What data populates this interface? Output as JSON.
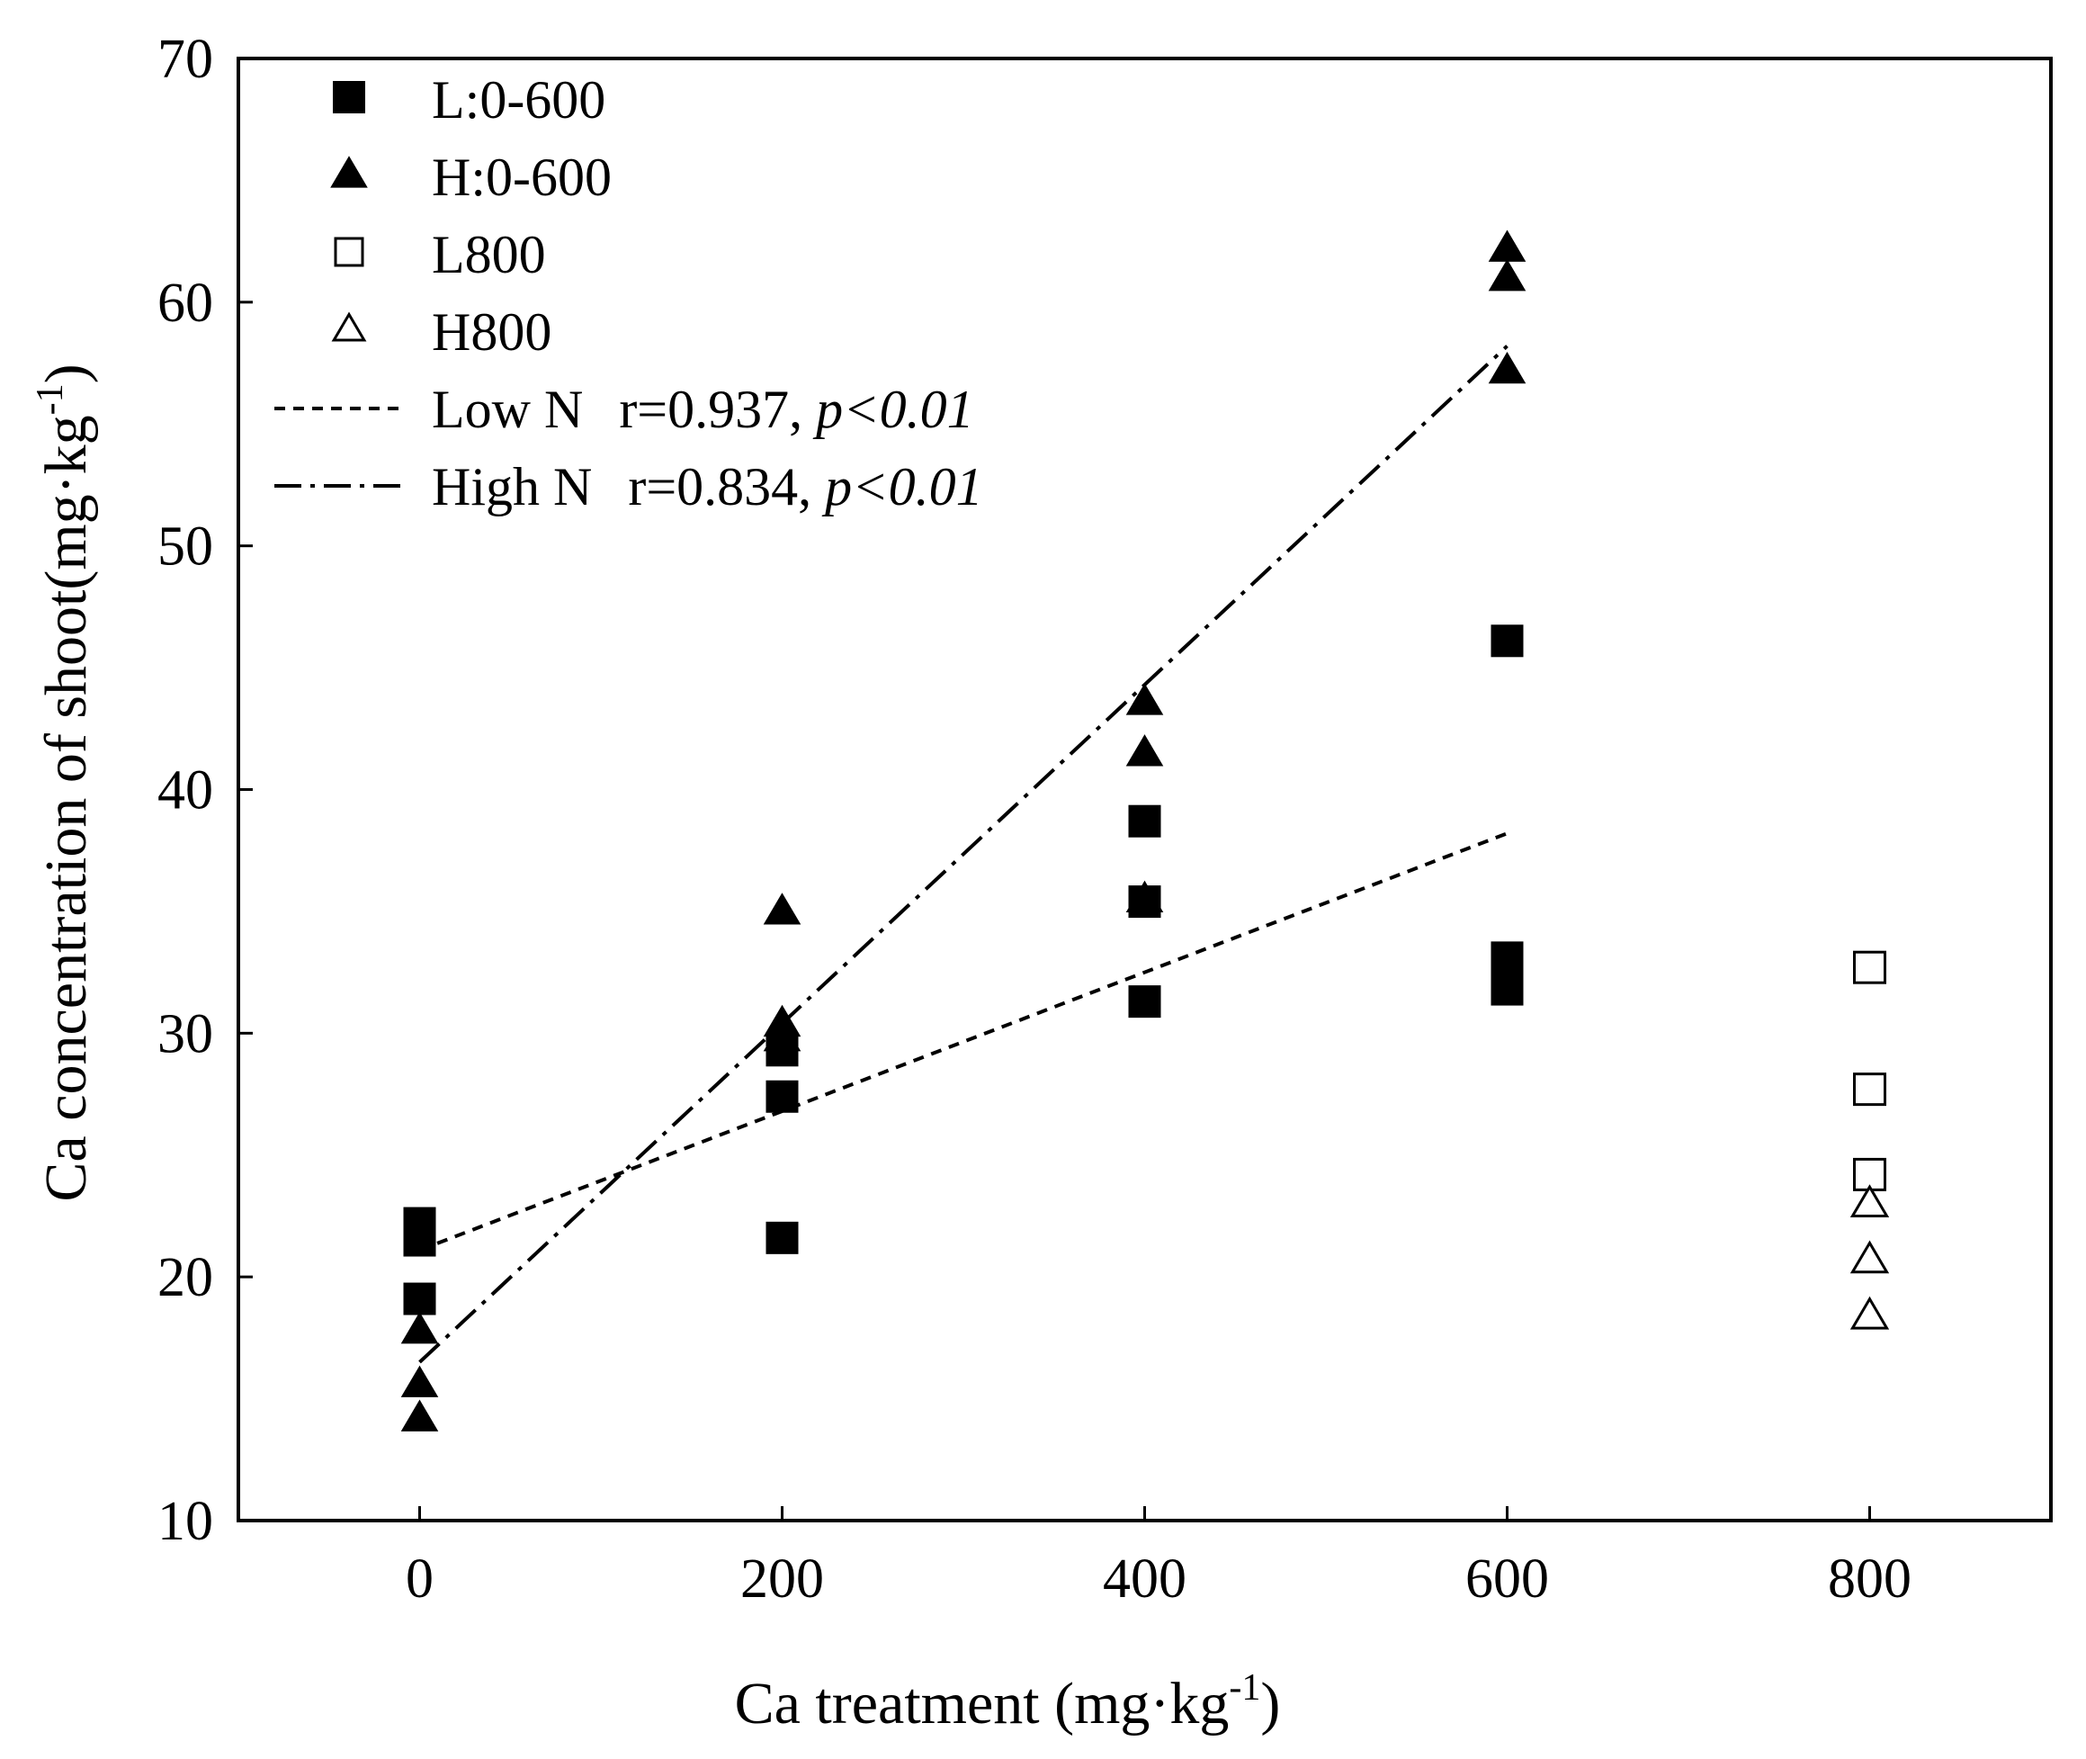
{
  "chart_data": {
    "type": "scatter",
    "xlabel": {
      "main": "Ca treatment (mg·kg",
      "sup": "-1",
      "end": ")"
    },
    "ylabel": {
      "main": "Ca concentration of shoot(mg·kg",
      "sup": "-1",
      "end": ")"
    },
    "xlim": [
      -100,
      900
    ],
    "ylim": [
      10,
      70
    ],
    "xticks": [
      0,
      200,
      400,
      600,
      800
    ],
    "yticks": [
      10,
      20,
      30,
      40,
      50,
      60,
      70
    ],
    "legend_position": "top-left",
    "series": [
      {
        "name": "L:0-600",
        "marker": "square",
        "filled": true,
        "x": [
          0,
          0,
          0,
          0,
          200,
          200,
          200,
          400,
          400,
          400,
          600,
          600,
          600
        ],
        "y": [
          22.2,
          21.5,
          19.1,
          21.9,
          29.3,
          27.4,
          21.6,
          38.7,
          35.4,
          31.3,
          46.1,
          33.1,
          31.8
        ]
      },
      {
        "name": "H:0-600",
        "marker": "triangle",
        "filled": true,
        "x": [
          0,
          0,
          0,
          200,
          200,
          200,
          400,
          400,
          400,
          600,
          600,
          600
        ],
        "y": [
          17.8,
          15.6,
          14.2,
          35.0,
          30.4,
          29.8,
          43.6,
          41.5,
          35.5,
          62.2,
          61.0,
          57.2
        ]
      },
      {
        "name": "L800",
        "marker": "square",
        "filled": false,
        "x": [
          800,
          800,
          800
        ],
        "y": [
          32.7,
          27.7,
          24.2
        ]
      },
      {
        "name": "H800",
        "marker": "triangle",
        "filled": false,
        "x": [
          800,
          800,
          800
        ],
        "y": [
          23.0,
          20.7,
          18.4
        ]
      }
    ],
    "fit_lines": [
      {
        "name": "Low N",
        "r_text": "r=0.937, ",
        "p_text": "p<0.01",
        "style": "dotted",
        "x": [
          0,
          600
        ],
        "y": [
          21.1,
          38.2
        ]
      },
      {
        "name": "High N",
        "r_text": "r=0.834, ",
        "p_text": "p<0.01",
        "style": "dashdot",
        "x": [
          0,
          600
        ],
        "y": [
          16.5,
          58.2
        ]
      }
    ]
  }
}
